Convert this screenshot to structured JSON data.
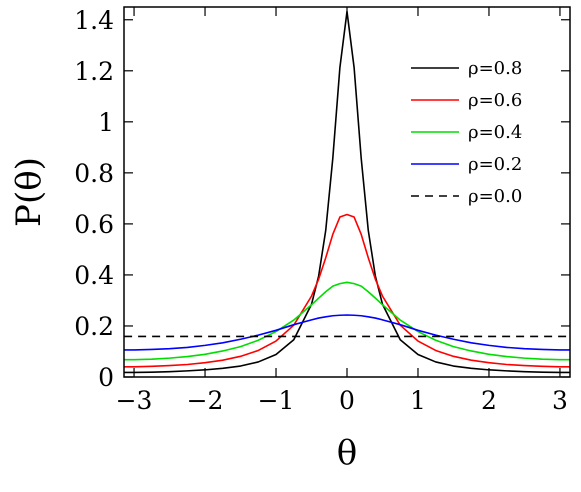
{
  "chart_data": {
    "type": "line",
    "title": "",
    "xlabel": "θ",
    "ylabel": "P(θ)",
    "xlim": [
      -3.14159,
      3.14159
    ],
    "ylim": [
      0,
      1.45
    ],
    "grid": false,
    "legend_position": "top-right",
    "x_ticks": [
      {
        "value": -3,
        "label": "−3"
      },
      {
        "value": -2,
        "label": "−2"
      },
      {
        "value": -1,
        "label": "−1"
      },
      {
        "value": 0,
        "label": "0"
      },
      {
        "value": 1,
        "label": "1"
      },
      {
        "value": 2,
        "label": "2"
      },
      {
        "value": 3,
        "label": "3"
      }
    ],
    "y_ticks": [
      {
        "value": 0,
        "label": "0"
      },
      {
        "value": 0.2,
        "label": "0.2"
      },
      {
        "value": 0.4,
        "label": "0.4"
      },
      {
        "value": 0.6,
        "label": "0.6"
      },
      {
        "value": 0.8,
        "label": "0.8"
      },
      {
        "value": 1.0,
        "label": "1"
      },
      {
        "value": 1.2,
        "label": "1.2"
      },
      {
        "value": 1.4,
        "label": "1.4"
      }
    ],
    "x": [
      -3.14,
      -3.0,
      -2.75,
      -2.5,
      -2.25,
      -2.0,
      -1.75,
      -1.5,
      -1.25,
      -1.0,
      -0.75,
      -0.5,
      -0.4,
      -0.3,
      -0.2,
      -0.1,
      0.0,
      0.1,
      0.2,
      0.3,
      0.4,
      0.5,
      0.75,
      1.0,
      1.25,
      1.5,
      1.75,
      2.0,
      2.25,
      2.5,
      2.75,
      3.0,
      3.14
    ],
    "series": [
      {
        "name": "ρ=0.8",
        "color": "#000000",
        "dash": "solid",
        "values": [
          0.018,
          0.018,
          0.019,
          0.021,
          0.024,
          0.028,
          0.034,
          0.043,
          0.059,
          0.088,
          0.146,
          0.285,
          0.395,
          0.574,
          0.857,
          1.213,
          1.432,
          1.213,
          0.857,
          0.574,
          0.395,
          0.285,
          0.146,
          0.088,
          0.059,
          0.043,
          0.034,
          0.028,
          0.024,
          0.021,
          0.019,
          0.018,
          0.018
        ]
      },
      {
        "name": "ρ=0.6",
        "color": "#ff0000",
        "dash": "solid",
        "values": [
          0.04,
          0.04,
          0.042,
          0.045,
          0.049,
          0.056,
          0.066,
          0.081,
          0.104,
          0.141,
          0.203,
          0.317,
          0.383,
          0.467,
          0.559,
          0.627,
          0.637,
          0.627,
          0.559,
          0.467,
          0.383,
          0.317,
          0.203,
          0.141,
          0.104,
          0.081,
          0.066,
          0.056,
          0.049,
          0.045,
          0.042,
          0.04,
          0.04
        ]
      },
      {
        "name": "ρ=0.4",
        "color": "#00dd00",
        "dash": "solid",
        "values": [
          0.068,
          0.068,
          0.07,
          0.074,
          0.08,
          0.089,
          0.102,
          0.119,
          0.144,
          0.178,
          0.223,
          0.283,
          0.309,
          0.334,
          0.356,
          0.366,
          0.371,
          0.366,
          0.356,
          0.334,
          0.309,
          0.283,
          0.223,
          0.178,
          0.144,
          0.119,
          0.102,
          0.089,
          0.08,
          0.074,
          0.07,
          0.068,
          0.068
        ]
      },
      {
        "name": "ρ=0.2",
        "color": "#0000ff",
        "dash": "solid",
        "values": [
          0.106,
          0.106,
          0.108,
          0.111,
          0.116,
          0.124,
          0.134,
          0.148,
          0.164,
          0.183,
          0.205,
          0.224,
          0.231,
          0.236,
          0.24,
          0.242,
          0.243,
          0.242,
          0.24,
          0.236,
          0.231,
          0.224,
          0.205,
          0.183,
          0.164,
          0.148,
          0.134,
          0.124,
          0.116,
          0.111,
          0.108,
          0.106,
          0.106
        ]
      },
      {
        "name": "ρ=0.0",
        "color": "#000000",
        "dash": "dashed",
        "values": [
          0.159,
          0.159,
          0.159,
          0.159,
          0.159,
          0.159,
          0.159,
          0.159,
          0.159,
          0.159,
          0.159,
          0.159,
          0.159,
          0.159,
          0.159,
          0.159,
          0.159,
          0.159,
          0.159,
          0.159,
          0.159,
          0.159,
          0.159,
          0.159,
          0.159,
          0.159,
          0.159,
          0.159,
          0.159,
          0.159,
          0.159,
          0.159,
          0.159
        ]
      }
    ]
  }
}
